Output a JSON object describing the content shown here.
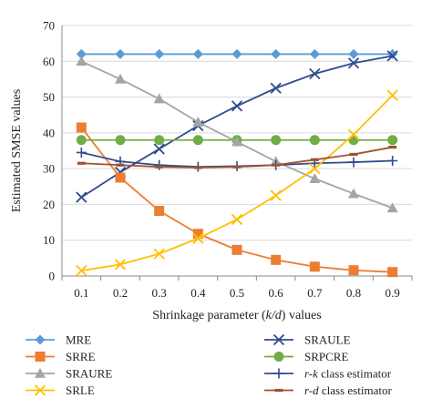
{
  "chart_data": {
    "type": "line",
    "title": "",
    "xlabel": "Shrinkage parameter (k/d) values",
    "xlabel_parts": [
      {
        "text": "Shrinkage parameter (",
        "italic": false
      },
      {
        "text": "k/d",
        "italic": true
      },
      {
        "text": ") values",
        "italic": false
      }
    ],
    "ylabel": "Estimated SMSE values",
    "x": [
      0.1,
      0.2,
      0.3,
      0.4,
      0.5,
      0.6,
      0.7,
      0.8,
      0.9
    ],
    "x_tick_labels": [
      "0.1",
      "0.2",
      "0.3",
      "0.4",
      "0.5",
      "0.6",
      "0.7",
      "0.8",
      "0.9"
    ],
    "ylim": [
      0,
      70
    ],
    "y_ticks": [
      0,
      10,
      20,
      30,
      40,
      50,
      60,
      70
    ],
    "grid": "horizontal",
    "legend_position": "bottom",
    "series": [
      {
        "name": "MRE",
        "label_parts": [
          {
            "text": "MRE",
            "italic": false
          }
        ],
        "color": "#5b9bd5",
        "marker": "diamond",
        "values": [
          62,
          62,
          62,
          62,
          62,
          62,
          62,
          62,
          62
        ]
      },
      {
        "name": "SRAULE",
        "label_parts": [
          {
            "text": "SRAULE",
            "italic": false
          }
        ],
        "color": "#2e4b8f",
        "marker": "x",
        "values": [
          22,
          29,
          35.5,
          42,
          47.5,
          52.5,
          56.5,
          59.5,
          61.5
        ]
      },
      {
        "name": "SRRE",
        "label_parts": [
          {
            "text": "SRRE",
            "italic": false
          }
        ],
        "color": "#ed7d31",
        "marker": "square",
        "values": [
          41.5,
          27.5,
          18.2,
          11.8,
          7.3,
          4.5,
          2.6,
          1.6,
          1.1
        ]
      },
      {
        "name": "SRPCRE",
        "label_parts": [
          {
            "text": "SRPCRE",
            "italic": false
          }
        ],
        "color": "#70ad47",
        "marker": "circle",
        "values": [
          38,
          38,
          38,
          38,
          38,
          38,
          38,
          38,
          38
        ]
      },
      {
        "name": "SRAURE",
        "label_parts": [
          {
            "text": "SRAURE",
            "italic": false
          }
        ],
        "color": "#a5a5a5",
        "marker": "triangle",
        "values": [
          60,
          55,
          49.5,
          43,
          37.5,
          32,
          27.2,
          23,
          19
        ]
      },
      {
        "name": "r-k class estimator",
        "label_parts": [
          {
            "text": "r-k",
            "italic": true
          },
          {
            "text": " class estimator",
            "italic": false
          }
        ],
        "color": "#2e4b8f",
        "marker": "plus",
        "values": [
          34.5,
          32,
          31,
          30.5,
          30.7,
          31,
          31.5,
          31.8,
          32.2
        ]
      },
      {
        "name": "SRLE",
        "label_parts": [
          {
            "text": "SRLE",
            "italic": false
          }
        ],
        "color": "#ffc000",
        "marker": "x",
        "values": [
          1.5,
          3.2,
          6.2,
          10.5,
          15.8,
          22.5,
          30,
          39.5,
          50.5
        ]
      },
      {
        "name": "r-d class estimator",
        "label_parts": [
          {
            "text": "r-d",
            "italic": true
          },
          {
            "text": " class estimator",
            "italic": false
          }
        ],
        "color": "#a0522d",
        "marker": "dash",
        "values": [
          31.5,
          31,
          30.5,
          30.3,
          30.5,
          31,
          32.5,
          34,
          36
        ]
      }
    ]
  }
}
